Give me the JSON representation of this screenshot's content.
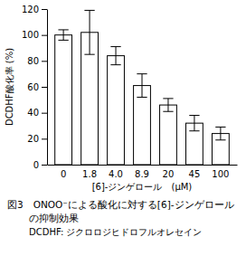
{
  "chart_data": {
    "type": "bar",
    "title": [
      "図3　ONOO⁻による酸化に対する[6]-ジンゲロール",
      "の抑制効果"
    ],
    "subtitle": "DCDHF: ジクロロジヒドロフルオレセイン",
    "x_label": "[6]-ジンゲロール　(μM)",
    "y_label": "DCDHF酸化率 (%)",
    "categories": [
      "0",
      "1.8",
      "4.0",
      "8.9",
      "20",
      "45",
      "100"
    ],
    "values": [
      100,
      102,
      84,
      61,
      46,
      32,
      24
    ],
    "errors": [
      4,
      17,
      7,
      9,
      5,
      6,
      5
    ],
    "color": "#ffffff",
    "ylim": [
      0,
      120
    ],
    "yticks": [
      0,
      20,
      40,
      60,
      80,
      100,
      120
    ],
    "grid": false
  }
}
